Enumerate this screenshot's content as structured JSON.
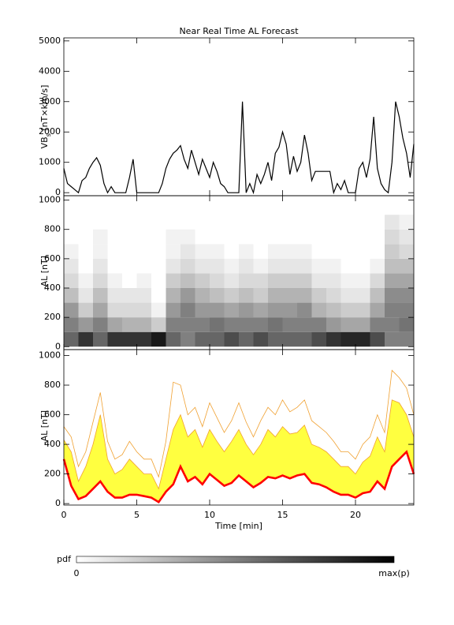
{
  "chart_data": [
    {
      "type": "line",
      "title": "Near Real Time AL Forecast",
      "ylabel": [
        "VB",
        "s",
        " [nT×km/s]"
      ],
      "color": "#000000",
      "xlim": [
        0,
        24
      ],
      "ylim": [
        -100,
        5100
      ],
      "yticks": [
        0,
        1000,
        2000,
        3000,
        4000,
        5000
      ],
      "x": [
        0,
        0.25,
        0.5,
        0.75,
        1,
        1.25,
        1.5,
        1.75,
        2,
        2.25,
        2.5,
        2.75,
        3,
        3.25,
        3.5,
        3.75,
        4,
        4.25,
        4.5,
        4.75,
        5,
        5.25,
        5.5,
        5.75,
        6,
        6.25,
        6.5,
        6.75,
        7,
        7.25,
        7.5,
        7.75,
        8,
        8.25,
        8.5,
        8.75,
        9,
        9.25,
        9.5,
        9.75,
        10,
        10.25,
        10.5,
        10.75,
        11,
        11.25,
        11.5,
        11.75,
        12,
        12.25,
        12.5,
        12.75,
        13,
        13.25,
        13.5,
        13.75,
        14,
        14.25,
        14.5,
        14.75,
        15,
        15.25,
        15.5,
        15.75,
        16,
        16.25,
        16.5,
        16.75,
        17,
        17.25,
        17.5,
        17.75,
        18,
        18.25,
        18.5,
        18.75,
        19,
        19.25,
        19.5,
        19.75,
        20,
        20.25,
        20.5,
        20.75,
        21,
        21.25,
        21.5,
        21.75,
        22,
        22.25,
        22.5,
        22.75,
        23,
        23.25,
        23.5,
        23.75,
        24
      ],
      "values": [
        800,
        300,
        200,
        100,
        0,
        400,
        500,
        800,
        1000,
        1150,
        900,
        300,
        0,
        200,
        0,
        0,
        0,
        0,
        500,
        1100,
        0,
        0,
        0,
        0,
        0,
        0,
        0,
        300,
        800,
        1100,
        1300,
        1400,
        1550,
        1100,
        800,
        1400,
        1000,
        600,
        1100,
        800,
        500,
        1000,
        700,
        300,
        200,
        0,
        0,
        0,
        0,
        3000,
        0,
        300,
        0,
        600,
        300,
        600,
        1000,
        400,
        1300,
        1500,
        2000,
        1600,
        600,
        1200,
        700,
        1000,
        1900,
        1300,
        400,
        700,
        700,
        700,
        700,
        700,
        0,
        300,
        100,
        400,
        0,
        0,
        0,
        800,
        1000,
        500,
        1100,
        2500,
        800,
        300,
        100,
        0,
        1000,
        3000,
        2500,
        1800,
        1300,
        500,
        1600
      ]
    },
    {
      "type": "heatmap",
      "ylabel": "-AL [nT]",
      "xlim": [
        0,
        24
      ],
      "ylim": [
        -20,
        1030
      ],
      "yticks": [
        0,
        200,
        400,
        600,
        800,
        1000
      ],
      "x_bins": [
        0,
        1,
        2,
        3,
        4,
        5,
        6,
        7,
        8,
        9,
        10,
        11,
        12,
        13,
        14,
        15,
        16,
        17,
        18,
        19,
        20,
        21,
        22,
        23,
        24
      ],
      "y_bins": [
        0,
        100,
        200,
        300,
        400,
        500,
        600,
        700,
        800,
        900
      ],
      "values": [
        [
          0.6,
          0.5,
          0.4,
          0.25,
          0.15,
          0.1,
          0.05,
          0,
          0
        ],
        [
          0.8,
          0.4,
          0.2,
          0.1,
          0.05,
          0,
          0,
          0,
          0
        ],
        [
          0.6,
          0.5,
          0.35,
          0.25,
          0.15,
          0.1,
          0.05,
          0.05,
          0
        ],
        [
          0.8,
          0.35,
          0.15,
          0.1,
          0.05,
          0,
          0,
          0,
          0
        ],
        [
          0.8,
          0.3,
          0.15,
          0.1,
          0,
          0,
          0,
          0,
          0
        ],
        [
          0.8,
          0.3,
          0.15,
          0.1,
          0.05,
          0,
          0,
          0,
          0
        ],
        [
          0.9,
          0.2,
          0.05,
          0,
          0,
          0,
          0,
          0,
          0
        ],
        [
          0.6,
          0.5,
          0.4,
          0.3,
          0.2,
          0.1,
          0.05,
          0.05,
          0
        ],
        [
          0.5,
          0.5,
          0.5,
          0.4,
          0.25,
          0.15,
          0.1,
          0.05,
          0
        ],
        [
          0.6,
          0.5,
          0.4,
          0.3,
          0.2,
          0.1,
          0.05,
          0,
          0
        ],
        [
          0.6,
          0.55,
          0.4,
          0.25,
          0.15,
          0.1,
          0.05,
          0,
          0
        ],
        [
          0.7,
          0.5,
          0.35,
          0.2,
          0.1,
          0.05,
          0,
          0,
          0
        ],
        [
          0.6,
          0.5,
          0.4,
          0.25,
          0.15,
          0.1,
          0.05,
          0,
          0
        ],
        [
          0.7,
          0.5,
          0.35,
          0.2,
          0.15,
          0.05,
          0,
          0,
          0
        ],
        [
          0.6,
          0.55,
          0.4,
          0.3,
          0.2,
          0.1,
          0.05,
          0,
          0
        ],
        [
          0.6,
          0.5,
          0.4,
          0.3,
          0.2,
          0.1,
          0.05,
          0,
          0
        ],
        [
          0.6,
          0.5,
          0.45,
          0.3,
          0.2,
          0.1,
          0.05,
          0,
          0
        ],
        [
          0.7,
          0.5,
          0.3,
          0.2,
          0.1,
          0.05,
          0,
          0,
          0
        ],
        [
          0.8,
          0.4,
          0.25,
          0.15,
          0.1,
          0.05,
          0,
          0,
          0
        ],
        [
          0.85,
          0.35,
          0.2,
          0.1,
          0.05,
          0,
          0,
          0,
          0
        ],
        [
          0.85,
          0.35,
          0.2,
          0.1,
          0.05,
          0,
          0,
          0,
          0
        ],
        [
          0.7,
          0.5,
          0.35,
          0.25,
          0.15,
          0.05,
          0,
          0,
          0
        ],
        [
          0.5,
          0.5,
          0.5,
          0.45,
          0.35,
          0.25,
          0.2,
          0.15,
          0.1
        ],
        [
          0.5,
          0.55,
          0.5,
          0.45,
          0.35,
          0.25,
          0.15,
          0.1,
          0.05
        ]
      ],
      "colorbar": {
        "label": "pdf",
        "min_label": "0",
        "max_label": "max(p)"
      }
    },
    {
      "type": "band",
      "ylabel": "-AL [nT]",
      "xlabel": "Time [min]",
      "xlim": [
        0,
        24
      ],
      "ylim": [
        -10,
        1040
      ],
      "xticks": [
        0,
        5,
        10,
        15,
        20
      ],
      "yticks": [
        0,
        200,
        400,
        600,
        800,
        1000
      ],
      "x": [
        0,
        0.5,
        1,
        1.5,
        2,
        2.5,
        3,
        3.5,
        4,
        4.5,
        5,
        5.5,
        6,
        6.5,
        7,
        7.5,
        8,
        8.5,
        9,
        9.5,
        10,
        10.5,
        11,
        11.5,
        12,
        12.5,
        13,
        13.5,
        14,
        14.5,
        15,
        15.5,
        16,
        16.5,
        17,
        17.5,
        18,
        18.5,
        19,
        19.5,
        20,
        20.5,
        21,
        21.5,
        22,
        22.5,
        23,
        23.5,
        24
      ],
      "series": [
        {
          "color": "#ff0000",
          "values": [
            300,
            120,
            30,
            50,
            100,
            150,
            80,
            40,
            40,
            60,
            60,
            50,
            40,
            10,
            80,
            130,
            250,
            150,
            180,
            130,
            200,
            160,
            120,
            140,
            190,
            150,
            110,
            140,
            180,
            170,
            190,
            170,
            190,
            200,
            140,
            130,
            110,
            80,
            60,
            60,
            40,
            70,
            80,
            150,
            100,
            250,
            300,
            350,
            200
          ]
        },
        {
          "color": "#f0a030",
          "fill": "#ffff40",
          "values": [
            430,
            350,
            150,
            250,
            400,
            600,
            300,
            200,
            230,
            300,
            250,
            200,
            200,
            100,
            300,
            500,
            600,
            450,
            500,
            380,
            500,
            420,
            350,
            420,
            500,
            400,
            330,
            400,
            500,
            450,
            520,
            470,
            480,
            530,
            400,
            380,
            350,
            300,
            250,
            250,
            200,
            280,
            320,
            450,
            350,
            700,
            680,
            600,
            450
          ]
        },
        {
          "color": "#f0a030",
          "values": [
            520,
            450,
            250,
            350,
            550,
            750,
            420,
            300,
            330,
            420,
            350,
            300,
            300,
            180,
            420,
            820,
            800,
            600,
            650,
            520,
            680,
            580,
            480,
            560,
            680,
            550,
            450,
            560,
            650,
            600,
            700,
            620,
            650,
            700,
            560,
            520,
            480,
            420,
            350,
            350,
            300,
            400,
            450,
            600,
            480,
            900,
            850,
            780,
            600
          ]
        }
      ]
    }
  ]
}
